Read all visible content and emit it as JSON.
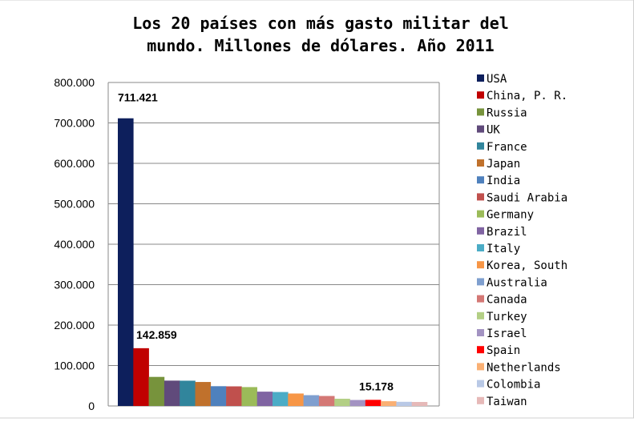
{
  "chart_data": {
    "type": "bar",
    "title_lines": [
      "Los 20 países con más gasto militar del",
      "mundo. Millones de dólares. Año 2011"
    ],
    "categories": [
      "USA",
      "China, P. R.",
      "Russia",
      "UK",
      "France",
      "Japan",
      "India",
      "Saudi Arabia",
      "Germany",
      "Brazil",
      "Italy",
      "Korea, South",
      "Australia",
      "Canada",
      "Turkey",
      "Israel",
      "Spain",
      "Netherlands",
      "Colombia",
      "Taiwan"
    ],
    "values": [
      711421,
      142859,
      71900,
      62700,
      62500,
      59300,
      48900,
      48500,
      46700,
      35400,
      34500,
      30800,
      26700,
      24700,
      17900,
      14800,
      15178,
      11800,
      10300,
      9900
    ],
    "colors": [
      "#0d1f5c",
      "#c00000",
      "#77933c",
      "#604a7b",
      "#31859c",
      "#c0712c",
      "#4f81bd",
      "#c0504d",
      "#9bbb59",
      "#8064a2",
      "#4bacc6",
      "#f79646",
      "#7f9fcf",
      "#d47875",
      "#b3cf85",
      "#a393c2",
      "#ff0000",
      "#fab074",
      "#b9c9e6",
      "#e6b9b8"
    ],
    "data_labels": [
      {
        "index": 0,
        "text": "711.421"
      },
      {
        "index": 1,
        "text": "142.859"
      },
      {
        "index": 16,
        "text": "15.178"
      }
    ],
    "yticks": [
      0,
      100000,
      200000,
      300000,
      400000,
      500000,
      600000,
      700000,
      800000
    ],
    "ytick_labels": [
      "0",
      "100.000",
      "200.000",
      "300.000",
      "400.000",
      "500.000",
      "600.000",
      "700.000",
      "800.000"
    ],
    "ylim": [
      0,
      800000
    ],
    "grid": true,
    "legend_position": "right"
  }
}
